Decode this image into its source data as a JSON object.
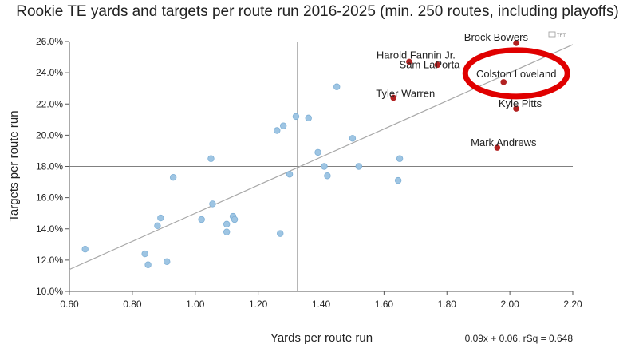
{
  "chart_data": {
    "type": "scatter",
    "title": "Rookie TE yards and targets per route run 2016-2025 (min. 250 routes, including playoffs)",
    "xlabel": "Yards per route run",
    "ylabel": "Targets per route run",
    "xlim": [
      0.6,
      2.2
    ],
    "ylim": [
      10.0,
      26.0
    ],
    "x_ticks": [
      "0.60",
      "0.80",
      "1.00",
      "1.20",
      "1.40",
      "1.60",
      "1.80",
      "2.00",
      "2.20"
    ],
    "y_ticks": [
      "10.0%",
      "12.0%",
      "14.0%",
      "16.0%",
      "18.0%",
      "20.0%",
      "22.0%",
      "24.0%",
      "26.0%"
    ],
    "reference_lines": {
      "x": 1.325,
      "y": 18.0
    },
    "trendline": {
      "slope": 0.09,
      "intercept": 0.06,
      "label": "0.09x + 0.06, rSq = 0.648"
    },
    "grid": false,
    "colors": {
      "highlighted": "#b22222",
      "other": "#9ec5e3",
      "other_stroke": "#7fb0d6",
      "trend": "#a8a8a8",
      "reference": "#808080",
      "circle": "#e00000"
    },
    "highlighted_points": [
      {
        "name": "Brock Bowers",
        "x": 2.02,
        "y": 25.9
      },
      {
        "name": "Harold Fannin Jr.",
        "x": 1.68,
        "y": 24.7
      },
      {
        "name": "Sam LaPorta",
        "x": 1.77,
        "y": 24.5
      },
      {
        "name": "Colston Loveland",
        "x": 1.98,
        "y": 23.4
      },
      {
        "name": "Tyler Warren",
        "x": 1.63,
        "y": 22.4
      },
      {
        "name": "Kyle Pitts",
        "x": 2.02,
        "y": 21.7
      },
      {
        "name": "Mark Andrews",
        "x": 1.96,
        "y": 19.2
      }
    ],
    "other_points": [
      {
        "x": 0.65,
        "y": 12.7
      },
      {
        "x": 0.84,
        "y": 12.4
      },
      {
        "x": 0.85,
        "y": 11.7
      },
      {
        "x": 0.91,
        "y": 11.9
      },
      {
        "x": 0.88,
        "y": 14.2
      },
      {
        "x": 0.89,
        "y": 14.7
      },
      {
        "x": 0.93,
        "y": 17.3
      },
      {
        "x": 1.02,
        "y": 14.6
      },
      {
        "x": 1.05,
        "y": 18.5
      },
      {
        "x": 1.055,
        "y": 15.6
      },
      {
        "x": 1.1,
        "y": 13.8
      },
      {
        "x": 1.1,
        "y": 14.3
      },
      {
        "x": 1.12,
        "y": 14.8
      },
      {
        "x": 1.125,
        "y": 14.6
      },
      {
        "x": 1.26,
        "y": 20.3
      },
      {
        "x": 1.27,
        "y": 13.7
      },
      {
        "x": 1.28,
        "y": 20.6
      },
      {
        "x": 1.3,
        "y": 17.5
      },
      {
        "x": 1.32,
        "y": 21.2
      },
      {
        "x": 1.36,
        "y": 21.1
      },
      {
        "x": 1.39,
        "y": 18.9
      },
      {
        "x": 1.41,
        "y": 18.0
      },
      {
        "x": 1.42,
        "y": 17.4
      },
      {
        "x": 1.45,
        "y": 23.1
      },
      {
        "x": 1.5,
        "y": 19.8
      },
      {
        "x": 1.52,
        "y": 18.0
      },
      {
        "x": 1.645,
        "y": 17.1
      },
      {
        "x": 1.65,
        "y": 18.5
      }
    ],
    "annotation": "Colston Loveland"
  },
  "watermark": "TFT"
}
